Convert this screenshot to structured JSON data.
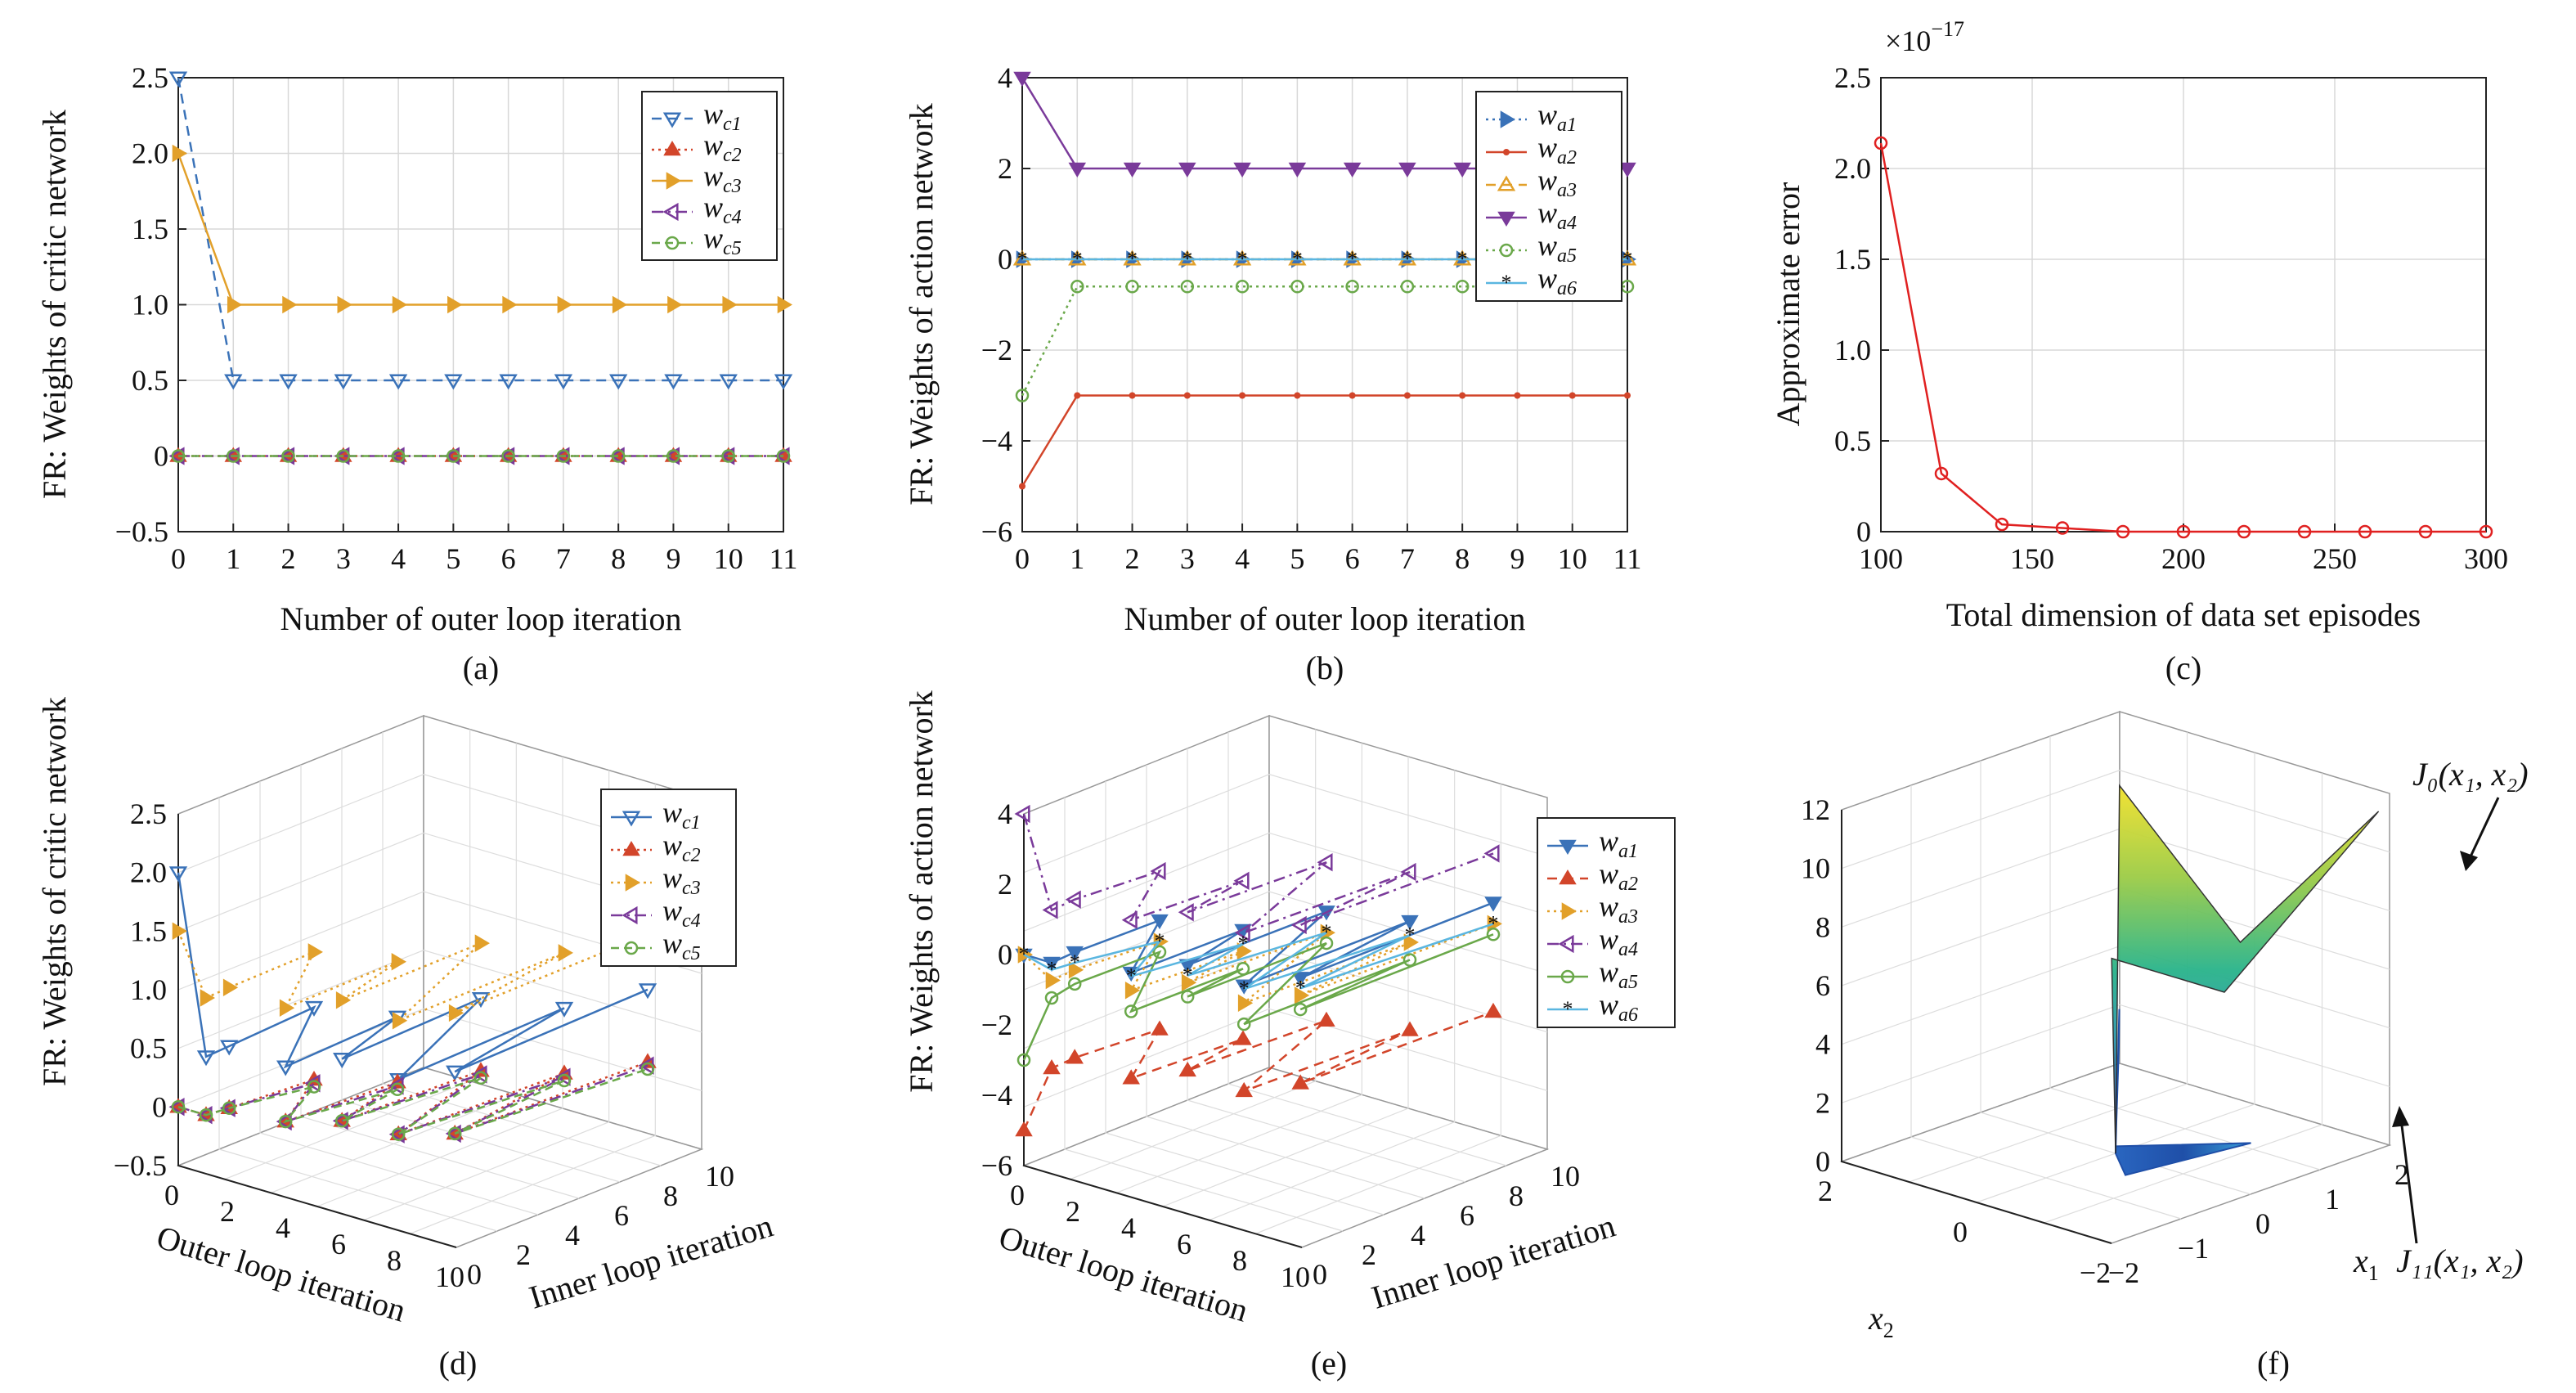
{
  "colors": {
    "c1": "#3a72b8",
    "c2": "#d2452a",
    "c3": "#e2a02a",
    "c4": "#7a3a9a",
    "c5": "#6aa84a",
    "c6": "#5ab6e0",
    "red": "#e02020",
    "grid": "#d8d8d8"
  },
  "chart_data": [
    {
      "id": "a",
      "type": "line",
      "caption": "(a)",
      "ylabel": "FR: Weights of critic network",
      "xlabel": "Number of outer loop iteration",
      "xlim": [
        0,
        11
      ],
      "ylim": [
        -0.5,
        2.5
      ],
      "xticks": [
        "0",
        "1",
        "2",
        "3",
        "4",
        "5",
        "6",
        "7",
        "8",
        "9",
        "10",
        "11"
      ],
      "yticks": [
        "−0.5",
        "0",
        "0.5",
        "1.0",
        "1.5",
        "2.0",
        "2.5"
      ],
      "x": [
        0,
        1,
        2,
        3,
        4,
        5,
        6,
        7,
        8,
        9,
        10,
        11
      ],
      "series": [
        {
          "name": "w",
          "sub": "c1",
          "values": [
            2.5,
            0.5,
            0.5,
            0.5,
            0.5,
            0.5,
            0.5,
            0.5,
            0.5,
            0.5,
            0.5,
            0.5
          ]
        },
        {
          "name": "w",
          "sub": "c2",
          "values": [
            0,
            0,
            0,
            0,
            0,
            0,
            0,
            0,
            0,
            0,
            0,
            0
          ]
        },
        {
          "name": "w",
          "sub": "c3",
          "values": [
            2.0,
            1.0,
            1.0,
            1.0,
            1.0,
            1.0,
            1.0,
            1.0,
            1.0,
            1.0,
            1.0,
            1.0
          ]
        },
        {
          "name": "w",
          "sub": "c4",
          "values": [
            0,
            0,
            0,
            0,
            0,
            0,
            0,
            0,
            0,
            0,
            0,
            0
          ]
        },
        {
          "name": "w",
          "sub": "c5",
          "values": [
            0,
            0,
            0,
            0,
            0,
            0,
            0,
            0,
            0,
            0,
            0,
            0
          ]
        }
      ]
    },
    {
      "id": "b",
      "type": "line",
      "caption": "(b)",
      "ylabel": "FR: Weights of action network",
      "xlabel": "Number of outer loop iteration",
      "xlim": [
        0,
        11
      ],
      "ylim": [
        -6,
        4
      ],
      "xticks": [
        "0",
        "1",
        "2",
        "3",
        "4",
        "5",
        "6",
        "7",
        "8",
        "9",
        "10",
        "11"
      ],
      "yticks": [
        "−6",
        "−4",
        "−2",
        "0",
        "2",
        "4"
      ],
      "x": [
        0,
        1,
        2,
        3,
        4,
        5,
        6,
        7,
        8,
        9,
        10,
        11
      ],
      "series": [
        {
          "name": "w",
          "sub": "a1",
          "values": [
            0,
            0,
            0,
            0,
            0,
            0,
            0,
            0,
            0,
            0,
            0,
            0
          ]
        },
        {
          "name": "w",
          "sub": "a2",
          "values": [
            -5,
            -3,
            -3,
            -3,
            -3,
            -3,
            -3,
            -3,
            -3,
            -3,
            -3,
            -3
          ]
        },
        {
          "name": "w",
          "sub": "a3",
          "values": [
            0,
            0,
            0,
            0,
            0,
            0,
            0,
            0,
            0,
            0,
            0,
            0
          ]
        },
        {
          "name": "w",
          "sub": "a4",
          "values": [
            4,
            2,
            2,
            2,
            2,
            2,
            2,
            2,
            2,
            2,
            2,
            2
          ]
        },
        {
          "name": "w",
          "sub": "a5",
          "values": [
            -3,
            -0.6,
            -0.6,
            -0.6,
            -0.6,
            -0.6,
            -0.6,
            -0.6,
            -0.6,
            -0.6,
            -0.6,
            -0.6
          ]
        },
        {
          "name": "w",
          "sub": "a6",
          "values": [
            0,
            0,
            0,
            0,
            0,
            0,
            0,
            0,
            0,
            0,
            0,
            0
          ]
        }
      ]
    },
    {
      "id": "c",
      "type": "line",
      "caption": "(c)",
      "ylabel": "Approximate error",
      "xlabel": "Total dimension of data set episodes",
      "scale_label": "×10",
      "scale_exp": "−17",
      "xlim": [
        100,
        300
      ],
      "ylim": [
        0,
        2.5
      ],
      "xticks": [
        "100",
        "150",
        "200",
        "250",
        "300"
      ],
      "yticks": [
        "0",
        "0.5",
        "1.0",
        "1.5",
        "2.0",
        "2.5"
      ],
      "x": [
        100,
        120,
        140,
        160,
        180,
        200,
        220,
        240,
        260,
        280,
        300
      ],
      "values": [
        2.14,
        0.32,
        0.04,
        0.02,
        0,
        0,
        0,
        0,
        0,
        0,
        0
      ]
    },
    {
      "id": "d",
      "type": "line3d",
      "caption": "(d)",
      "ylabel": "FR: Weights of critic network",
      "xlabel": "Outer loop iteration",
      "xlabel2": "Inner loop iteration",
      "zticks": [
        "−0.5",
        "0",
        "0.5",
        "1.0",
        "1.5",
        "2.0",
        "2.5"
      ],
      "xticks": [
        "0",
        "2",
        "4",
        "6",
        "8",
        "10"
      ],
      "yticks": [
        "0",
        "2",
        "4",
        "6",
        "8",
        "10"
      ],
      "legend": [
        {
          "name": "w",
          "sub": "c1"
        },
        {
          "name": "w",
          "sub": "c2"
        },
        {
          "name": "w",
          "sub": "c3"
        },
        {
          "name": "w",
          "sub": "c4"
        },
        {
          "name": "w",
          "sub": "c5"
        }
      ]
    },
    {
      "id": "e",
      "type": "line3d",
      "caption": "(e)",
      "ylabel": "FR: Weights of action network",
      "xlabel": "Outer loop iteration",
      "xlabel2": "Inner loop iteration",
      "zticks": [
        "−6",
        "−4",
        "−2",
        "0",
        "2",
        "4"
      ],
      "xticks": [
        "0",
        "2",
        "4",
        "6",
        "8",
        "10"
      ],
      "yticks": [
        "0",
        "2",
        "4",
        "6",
        "8",
        "10"
      ],
      "legend": [
        {
          "name": "w",
          "sub": "a1"
        },
        {
          "name": "w",
          "sub": "a2"
        },
        {
          "name": "w",
          "sub": "a3"
        },
        {
          "name": "w",
          "sub": "a4"
        },
        {
          "name": "w",
          "sub": "a5"
        },
        {
          "name": "w",
          "sub": "a6"
        }
      ]
    },
    {
      "id": "f",
      "type": "surface",
      "caption": "(f)",
      "zticks": [
        "0",
        "2",
        "4",
        "6",
        "8",
        "10",
        "12"
      ],
      "x1ticks": [
        "−2",
        "−1",
        "0",
        "1",
        "2"
      ],
      "x2ticks": [
        "2",
        "0",
        "−2"
      ],
      "x1label": "x",
      "x1sub": "1",
      "x2label": "x",
      "x2sub": "2",
      "annot_top": "J₀(x₁, x₂)",
      "annot_bottom": "J₁₁(x₁, x₂)"
    }
  ]
}
